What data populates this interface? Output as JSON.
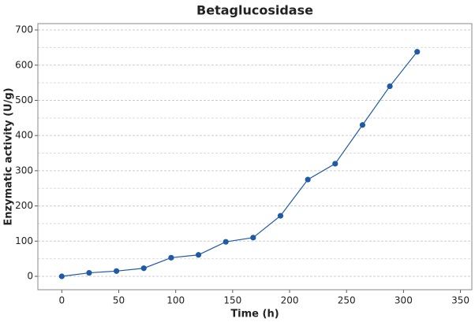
{
  "chart_data": {
    "type": "line",
    "title": "Betaglucosidase",
    "x_label": "Time (h)",
    "y_label": "Enzymatic activity (U/g)",
    "x": [
      0,
      24,
      48,
      72,
      96,
      120,
      144,
      168,
      192,
      216,
      240,
      264,
      288,
      312
    ],
    "series": [
      {
        "name": "Betaglucosidase",
        "color": "#1f5aa6",
        "values": [
          0,
          10,
          15,
          23,
          53,
          61,
          98,
          110,
          172,
          275,
          320,
          430,
          540,
          638
        ]
      }
    ],
    "xlim": [
      -21,
      360
    ],
    "xticks": [
      0,
      50,
      100,
      150,
      200,
      250,
      300,
      350
    ],
    "ylim": [
      -38,
      718
    ],
    "yticks": [
      0,
      100,
      200,
      300,
      400,
      500,
      600,
      700
    ],
    "minor_yticks": [
      50,
      150,
      250,
      350,
      450,
      550,
      650
    ],
    "grid": true
  }
}
